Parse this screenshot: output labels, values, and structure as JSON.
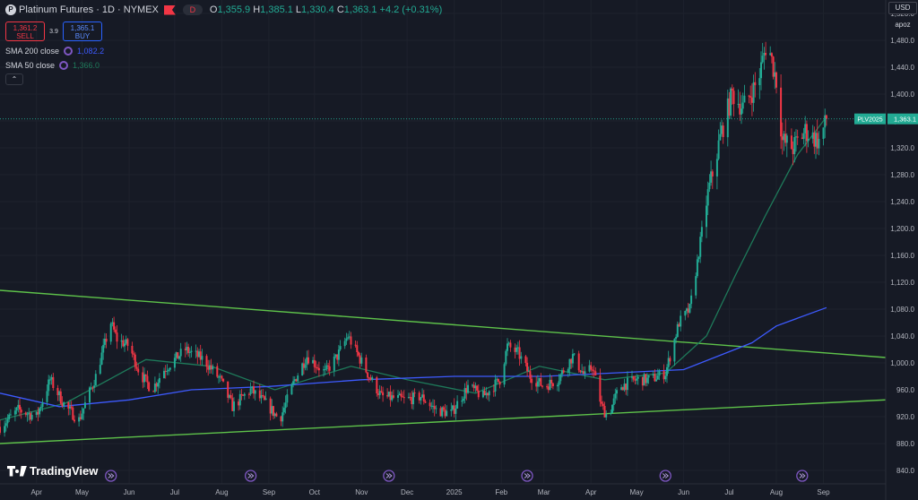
{
  "header": {
    "symbol_title": "Platinum Futures · 1D · NYMEX",
    "market_status": "D",
    "ohlc": {
      "o_label": "O",
      "o": "1,355.9",
      "h_label": "H",
      "h": "1,385.1",
      "l_label": "L",
      "l": "1,330.4",
      "c_label": "C",
      "c": "1,363.1",
      "change": "+4.2 (+0.31%)"
    }
  },
  "trade": {
    "sell_price": "1,361.2",
    "sell_label": "SELL",
    "spread": "3.9",
    "buy_price": "1,365.1",
    "buy_label": "BUY"
  },
  "indicators": [
    {
      "label": "SMA 200 close",
      "value": "1,082.2",
      "color": "#3d5afe"
    },
    {
      "label": "SMA 50 close",
      "value": "1,366.0",
      "color": "#1e7a5a"
    }
  ],
  "toolbar": {
    "currency": "USD",
    "unit": "apoz"
  },
  "price_label": {
    "symbol": "PLV2025",
    "value": "1,363.1"
  },
  "branding": {
    "logo_text": "TradingView"
  },
  "colors": {
    "up": "#22ab94",
    "down": "#f23645",
    "trendline": "#5ec24a",
    "sma200": "#3d5afe",
    "sma50": "#1e7a5a",
    "background": "#161a25",
    "grid": "#1e222d"
  },
  "chart_data": {
    "type": "candlestick",
    "ylim": [
      820,
      1540
    ],
    "y_ticks": [
      840,
      880,
      920,
      960,
      1000,
      1040,
      1080,
      1120,
      1160,
      1200,
      1240,
      1280,
      1320,
      1360,
      1400,
      1440,
      1480,
      1520
    ],
    "y_tick_labels": [
      "840.0",
      "880.0",
      "920.0",
      "960.0",
      "1,000.0",
      "1,040.0",
      "1,080.0",
      "1,120.0",
      "1,160.0",
      "1,200.0",
      "1,240.0",
      "1,280.0",
      "1,320.0",
      "1,360.0",
      "1,400.0",
      "1,440.0",
      "1,480.0",
      "1,520.0"
    ],
    "x_labels": [
      "Apr",
      "May",
      "Jun",
      "Jul",
      "Aug",
      "Sep",
      "Oct",
      "Nov",
      "Dec",
      "2025",
      "Feb",
      "Mar",
      "Apr",
      "May",
      "Jun",
      "Jul",
      "Aug",
      "Sep"
    ],
    "x_label_dates": [
      "2024-04-01",
      "2024-05-01",
      "2024-06-01",
      "2024-07-01",
      "2024-08-01",
      "2024-09-01",
      "2024-10-01",
      "2024-11-01",
      "2024-12-01",
      "2025-01-01",
      "2025-02-01",
      "2025-03-01",
      "2025-04-01",
      "2025-05-01",
      "2025-06-01",
      "2025-07-01",
      "2025-08-01",
      "2025-09-01"
    ],
    "x_range": [
      "2024-03-08",
      "2025-10-12"
    ],
    "last_close": 1363.1,
    "price_path": [
      {
        "date": "2024-03-08",
        "price": 905
      },
      {
        "date": "2024-03-20",
        "price": 930
      },
      {
        "date": "2024-04-01",
        "price": 920
      },
      {
        "date": "2024-04-10",
        "price": 975
      },
      {
        "date": "2024-04-20",
        "price": 935
      },
      {
        "date": "2024-04-29",
        "price": 915
      },
      {
        "date": "2024-05-10",
        "price": 980
      },
      {
        "date": "2024-05-20",
        "price": 1060
      },
      {
        "date": "2024-05-24",
        "price": 1035
      },
      {
        "date": "2024-06-01",
        "price": 1025
      },
      {
        "date": "2024-06-08",
        "price": 985
      },
      {
        "date": "2024-06-16",
        "price": 960
      },
      {
        "date": "2024-06-24",
        "price": 990
      },
      {
        "date": "2024-07-08",
        "price": 1020
      },
      {
        "date": "2024-07-20",
        "price": 1005
      },
      {
        "date": "2024-07-31",
        "price": 975
      },
      {
        "date": "2024-08-08",
        "price": 935
      },
      {
        "date": "2024-08-20",
        "price": 960
      },
      {
        "date": "2024-09-01",
        "price": 935
      },
      {
        "date": "2024-09-08",
        "price": 915
      },
      {
        "date": "2024-09-18",
        "price": 975
      },
      {
        "date": "2024-09-26",
        "price": 1010
      },
      {
        "date": "2024-10-08",
        "price": 985
      },
      {
        "date": "2024-10-16",
        "price": 1010
      },
      {
        "date": "2024-10-23",
        "price": 1040
      },
      {
        "date": "2024-10-30",
        "price": 1010
      },
      {
        "date": "2024-11-06",
        "price": 980
      },
      {
        "date": "2024-11-14",
        "price": 950
      },
      {
        "date": "2024-11-30",
        "price": 945
      },
      {
        "date": "2024-12-10",
        "price": 950
      },
      {
        "date": "2024-12-20",
        "price": 930
      },
      {
        "date": "2024-12-30",
        "price": 925
      },
      {
        "date": "2025-01-10",
        "price": 965
      },
      {
        "date": "2025-01-20",
        "price": 950
      },
      {
        "date": "2025-01-31",
        "price": 975
      },
      {
        "date": "2025-02-05",
        "price": 1025
      },
      {
        "date": "2025-02-12",
        "price": 1015
      },
      {
        "date": "2025-02-20",
        "price": 980
      },
      {
        "date": "2025-03-01",
        "price": 965
      },
      {
        "date": "2025-03-10",
        "price": 975
      },
      {
        "date": "2025-03-20",
        "price": 1010
      },
      {
        "date": "2025-03-28",
        "price": 980
      },
      {
        "date": "2025-04-02",
        "price": 995
      },
      {
        "date": "2025-04-08",
        "price": 935
      },
      {
        "date": "2025-04-12",
        "price": 920
      },
      {
        "date": "2025-04-20",
        "price": 965
      },
      {
        "date": "2025-05-01",
        "price": 975
      },
      {
        "date": "2025-05-10",
        "price": 975
      },
      {
        "date": "2025-05-20",
        "price": 985
      },
      {
        "date": "2025-05-29",
        "price": 1060
      },
      {
        "date": "2025-06-05",
        "price": 1080
      },
      {
        "date": "2025-06-10",
        "price": 1150
      },
      {
        "date": "2025-06-16",
        "price": 1240
      },
      {
        "date": "2025-06-26",
        "price": 1345
      },
      {
        "date": "2025-07-03",
        "price": 1400
      },
      {
        "date": "2025-07-10",
        "price": 1380
      },
      {
        "date": "2025-07-20",
        "price": 1420
      },
      {
        "date": "2025-07-26",
        "price": 1480
      },
      {
        "date": "2025-08-01",
        "price": 1420
      },
      {
        "date": "2025-08-05",
        "price": 1330
      },
      {
        "date": "2025-08-12",
        "price": 1320
      },
      {
        "date": "2025-08-20",
        "price": 1345
      },
      {
        "date": "2025-08-29",
        "price": 1330
      },
      {
        "date": "2025-09-03",
        "price": 1360
      }
    ],
    "sma200_points": [
      {
        "date": "2024-03-08",
        "price": 955
      },
      {
        "date": "2024-04-16",
        "price": 935
      },
      {
        "date": "2024-06-01",
        "price": 945
      },
      {
        "date": "2024-07-12",
        "price": 960
      },
      {
        "date": "2024-09-01",
        "price": 965
      },
      {
        "date": "2024-11-01",
        "price": 975
      },
      {
        "date": "2025-01-01",
        "price": 980
      },
      {
        "date": "2025-03-01",
        "price": 980
      },
      {
        "date": "2025-06-01",
        "price": 990
      },
      {
        "date": "2025-07-16",
        "price": 1030
      },
      {
        "date": "2025-08-01",
        "price": 1055
      },
      {
        "date": "2025-09-03",
        "price": 1082.2
      }
    ],
    "sma50_points": [
      {
        "date": "2024-03-08",
        "price": 915
      },
      {
        "date": "2024-04-20",
        "price": 940
      },
      {
        "date": "2024-06-12",
        "price": 1005
      },
      {
        "date": "2024-07-25",
        "price": 995
      },
      {
        "date": "2024-09-05",
        "price": 960
      },
      {
        "date": "2024-10-25",
        "price": 995
      },
      {
        "date": "2024-12-01",
        "price": 975
      },
      {
        "date": "2025-01-15",
        "price": 955
      },
      {
        "date": "2025-02-26",
        "price": 995
      },
      {
        "date": "2025-04-10",
        "price": 975
      },
      {
        "date": "2025-05-20",
        "price": 985
      },
      {
        "date": "2025-06-16",
        "price": 1040
      },
      {
        "date": "2025-07-05",
        "price": 1130
      },
      {
        "date": "2025-07-25",
        "price": 1220
      },
      {
        "date": "2025-08-15",
        "price": 1310
      },
      {
        "date": "2025-09-03",
        "price": 1366.0
      }
    ],
    "trendlines": [
      {
        "start": {
          "date": "2024-03-08",
          "price": 1108
        },
        "end": {
          "date": "2025-10-12",
          "price": 1008
        }
      },
      {
        "start": {
          "date": "2024-03-08",
          "price": 880
        },
        "end": {
          "date": "2025-10-12",
          "price": 945
        }
      }
    ],
    "event_marker_dates": [
      "2024-05-20",
      "2024-08-20",
      "2024-11-19",
      "2025-02-18",
      "2025-05-20",
      "2025-08-18"
    ]
  }
}
